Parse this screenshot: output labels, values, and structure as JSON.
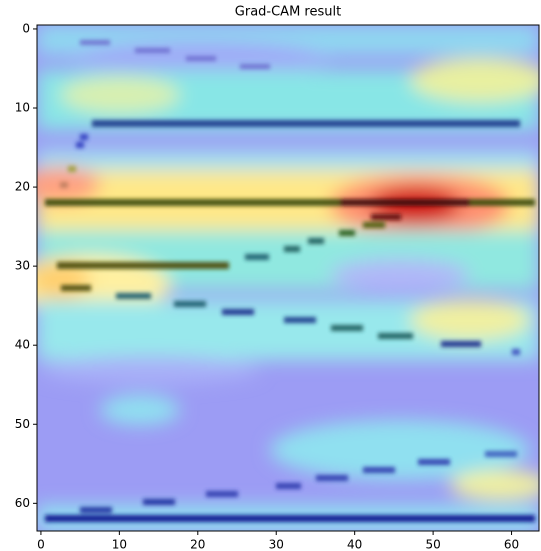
{
  "chart_data": {
    "type": "image",
    "title": "Grad-CAM result",
    "xlim": [
      -0.5,
      63.5
    ],
    "ylim": [
      63.5,
      -0.5
    ],
    "xticks": [
      0,
      10,
      20,
      30,
      40,
      50,
      60
    ],
    "yticks": [
      0,
      10,
      20,
      30,
      40,
      50,
      60
    ]
  }
}
